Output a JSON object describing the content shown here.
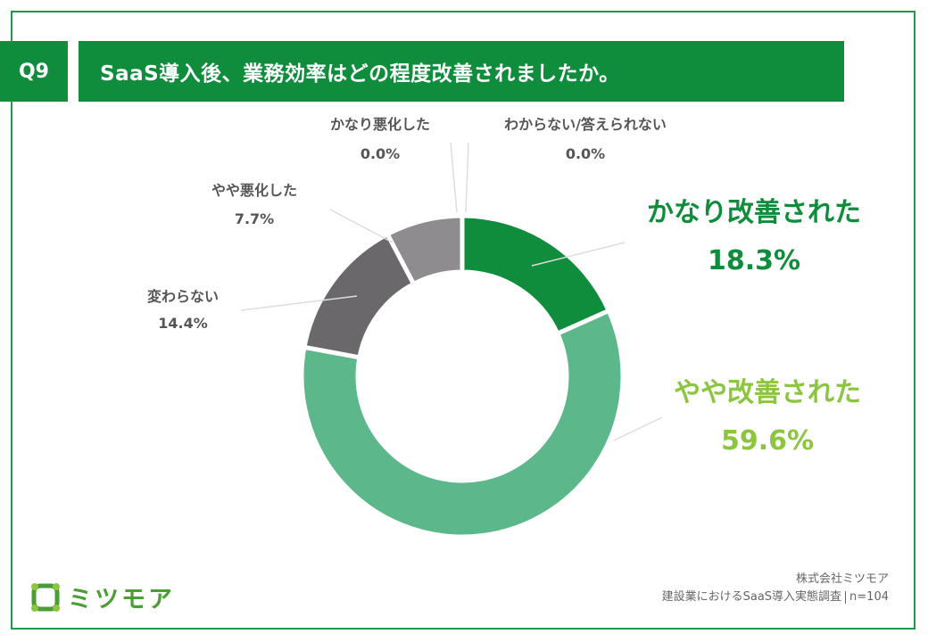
{
  "question": {
    "number": "Q9",
    "text": "SaaS導入後、業務効率はどの程度改善されましたか。"
  },
  "chart_data": {
    "type": "pie",
    "variant": "donut",
    "title": "SaaS導入後、業務効率はどの程度改善されましたか。",
    "slices": [
      {
        "label": "かなり改善された",
        "value": 18.3,
        "display": "18.3%",
        "color": "#0f8c3c",
        "label_color": "#0f8c3c"
      },
      {
        "label": "やや改善された",
        "value": 59.6,
        "display": "59.6%",
        "color": "#5cb88a",
        "label_color": "#8cc63f"
      },
      {
        "label": "変わらない",
        "value": 14.4,
        "display": "14.4%",
        "color": "#6b686b",
        "label_color": "#555555"
      },
      {
        "label": "やや悪化した",
        "value": 7.7,
        "display": "7.7%",
        "color": "#8e8c8e",
        "label_color": "#555555"
      },
      {
        "label": "かなり悪化した",
        "value": 0.0,
        "display": "0.0%",
        "color": "#b0b0b0",
        "label_color": "#555555"
      },
      {
        "label": "わからない/答えられない",
        "value": 0.0,
        "display": "0.0%",
        "color": "#d0d0d0",
        "label_color": "#555555"
      }
    ]
  },
  "footer": {
    "company": "株式会社ミツモア",
    "survey": "建設業におけるSaaS導入実態調査",
    "sample": "n=104"
  },
  "logo": {
    "name": "ミツモア",
    "color": "#4a9e35"
  }
}
